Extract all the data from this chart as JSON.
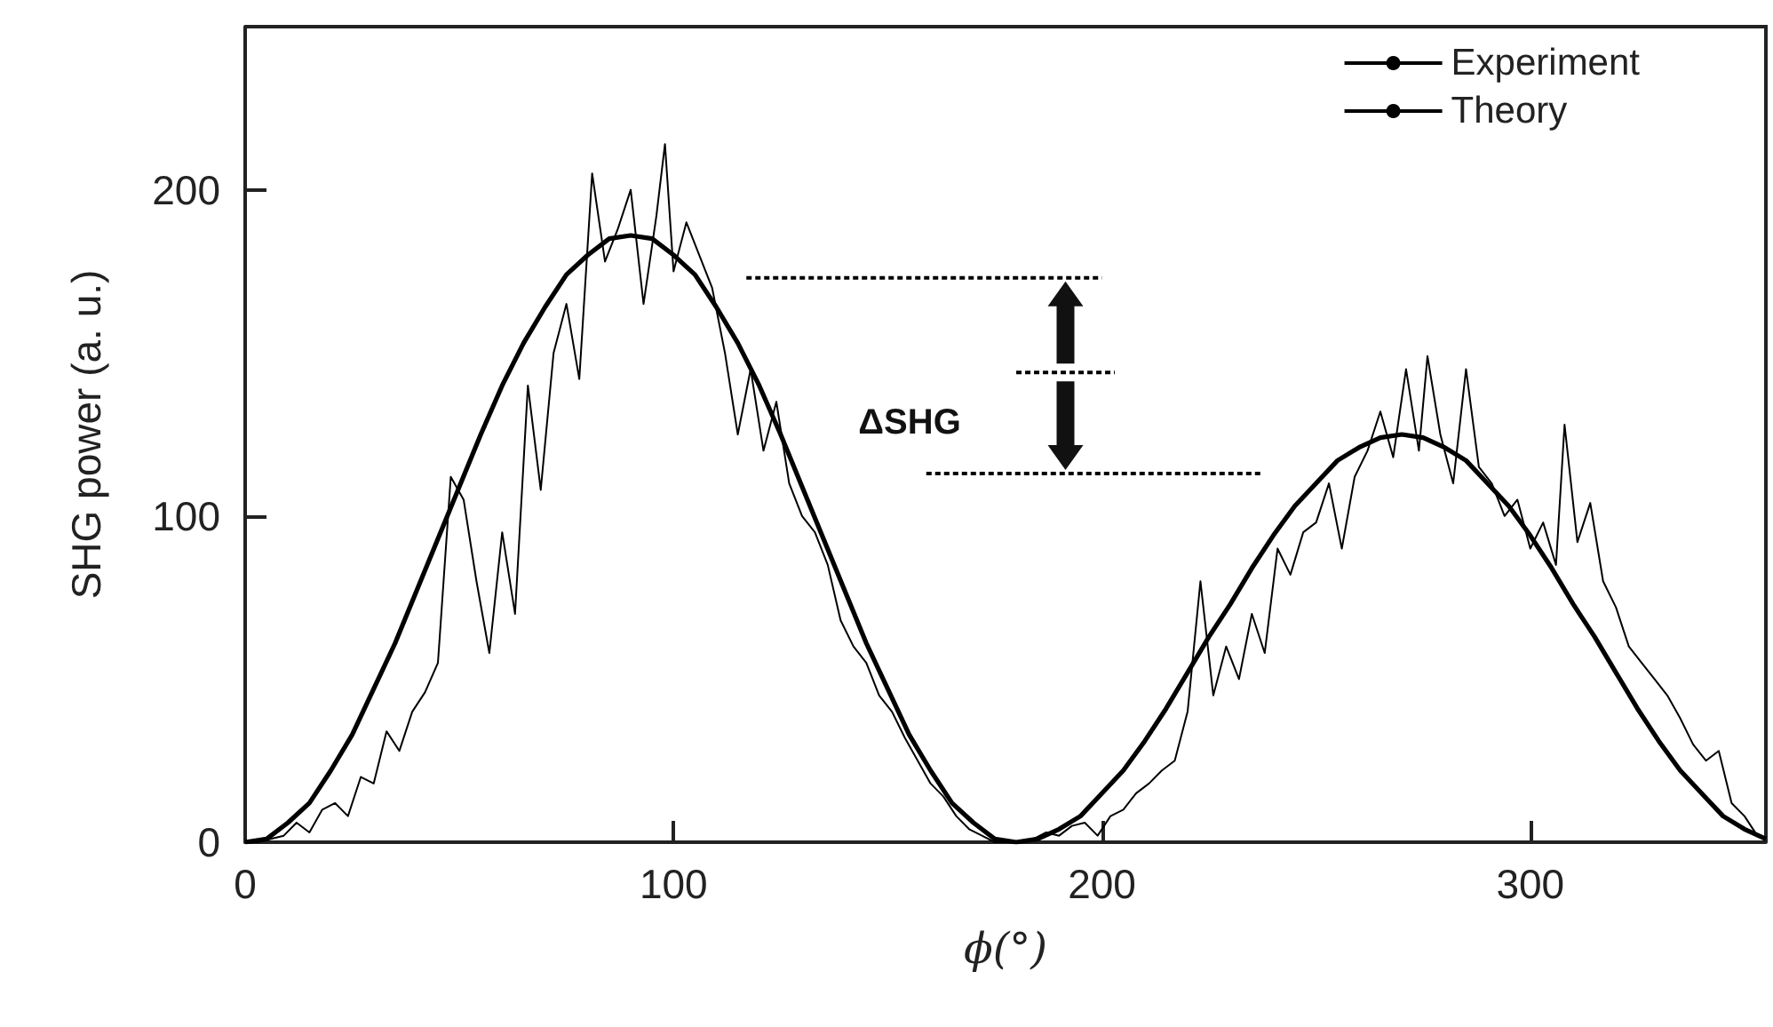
{
  "chart_data": {
    "type": "line",
    "xlabel": "ϕ(°)",
    "ylabel": "SHG power (a. u.)",
    "xlim": [
      0,
      355
    ],
    "xticks": [
      0,
      100,
      200,
      300
    ],
    "ylim": [
      0,
      250
    ],
    "yticks": [
      0,
      100,
      200
    ],
    "grid": false,
    "legend": "top right",
    "marker": "none",
    "annotations": [
      "ΔSHG"
    ],
    "series": [
      {
        "name": "Experiment",
        "color": "#000000",
        "line_style": "solid",
        "x": [
          0,
          3,
          6,
          9,
          12,
          15,
          18,
          21,
          24,
          27,
          30,
          33,
          36,
          39,
          42,
          45,
          48,
          51,
          54,
          57,
          60,
          63,
          66,
          69,
          72,
          75,
          78,
          81,
          84,
          87,
          90,
          93,
          96,
          98,
          100,
          103,
          106,
          109,
          112,
          115,
          118,
          121,
          124,
          127,
          130,
          133,
          136,
          139,
          142,
          145,
          148,
          151,
          154,
          157,
          160,
          163,
          166,
          169,
          172,
          175,
          178,
          181,
          184,
          187,
          190,
          193,
          196,
          199,
          202,
          205,
          208,
          211,
          214,
          217,
          220,
          223,
          226,
          229,
          232,
          235,
          238,
          241,
          244,
          247,
          250,
          253,
          256,
          259,
          262,
          265,
          268,
          271,
          274,
          276,
          279,
          282,
          285,
          288,
          291,
          294,
          297,
          300,
          303,
          306,
          308,
          311,
          314,
          317,
          320,
          323,
          326,
          329,
          332,
          335,
          338,
          341,
          344,
          347,
          350,
          353
        ],
        "values": [
          0,
          0,
          1,
          2,
          6,
          3,
          10,
          12,
          8,
          20,
          18,
          34,
          28,
          40,
          46,
          55,
          112,
          105,
          80,
          58,
          95,
          70,
          140,
          108,
          150,
          165,
          142,
          205,
          178,
          188,
          200,
          165,
          192,
          214,
          175,
          190,
          180,
          170,
          150,
          125,
          145,
          120,
          135,
          110,
          100,
          95,
          85,
          68,
          60,
          55,
          45,
          40,
          32,
          25,
          18,
          14,
          8,
          4,
          2,
          0,
          0,
          0,
          1,
          3,
          2,
          5,
          6,
          2,
          8,
          10,
          15,
          18,
          22,
          25,
          40,
          80,
          45,
          60,
          50,
          70,
          58,
          90,
          82,
          95,
          98,
          110,
          90,
          112,
          120,
          132,
          118,
          145,
          120,
          149,
          125,
          110,
          145,
          115,
          110,
          100,
          105,
          90,
          98,
          85,
          128,
          92,
          104,
          80,
          72,
          60,
          55,
          50,
          45,
          38,
          30,
          25,
          28,
          12,
          8,
          2
        ]
      },
      {
        "name": "Theory",
        "color": "#000000",
        "line_style": "solid",
        "x": [
          0,
          5,
          10,
          15,
          20,
          25,
          30,
          35,
          40,
          45,
          50,
          55,
          60,
          65,
          70,
          75,
          80,
          85,
          90,
          95,
          100,
          105,
          110,
          115,
          120,
          125,
          130,
          135,
          140,
          145,
          150,
          155,
          160,
          165,
          170,
          175,
          180,
          185,
          190,
          195,
          200,
          205,
          210,
          215,
          220,
          225,
          230,
          235,
          240,
          245,
          250,
          255,
          260,
          265,
          270,
          275,
          280,
          285,
          290,
          295,
          300,
          305,
          310,
          315,
          320,
          325,
          330,
          335,
          340,
          345,
          350,
          355
        ],
        "values": [
          0,
          1,
          6,
          12,
          22,
          33,
          47,
          61,
          77,
          93,
          109,
          125,
          140,
          153,
          164,
          174,
          180,
          185,
          186,
          185,
          180,
          174,
          164,
          153,
          140,
          125,
          109,
          93,
          77,
          61,
          47,
          33,
          22,
          12,
          6,
          1,
          0,
          1,
          4,
          8,
          15,
          22,
          31,
          41,
          52,
          63,
          73,
          84,
          94,
          103,
          110,
          117,
          121,
          124,
          125,
          124,
          121,
          117,
          110,
          103,
          94,
          84,
          73,
          63,
          52,
          41,
          31,
          22,
          15,
          8,
          4,
          1
        ]
      },
      {
        "color": "#000000",
        "line_style": "dotted",
        "x": [
          117,
          200
        ],
        "values": [
          173,
          173
        ]
      },
      {
        "color": "#000000",
        "line_style": "dotted",
        "x": [
          180,
          203
        ],
        "values": [
          144,
          144
        ]
      },
      {
        "color": "#000000",
        "line_style": "dotted",
        "x": [
          159,
          237
        ],
        "values": [
          113,
          113
        ]
      }
    ]
  }
}
